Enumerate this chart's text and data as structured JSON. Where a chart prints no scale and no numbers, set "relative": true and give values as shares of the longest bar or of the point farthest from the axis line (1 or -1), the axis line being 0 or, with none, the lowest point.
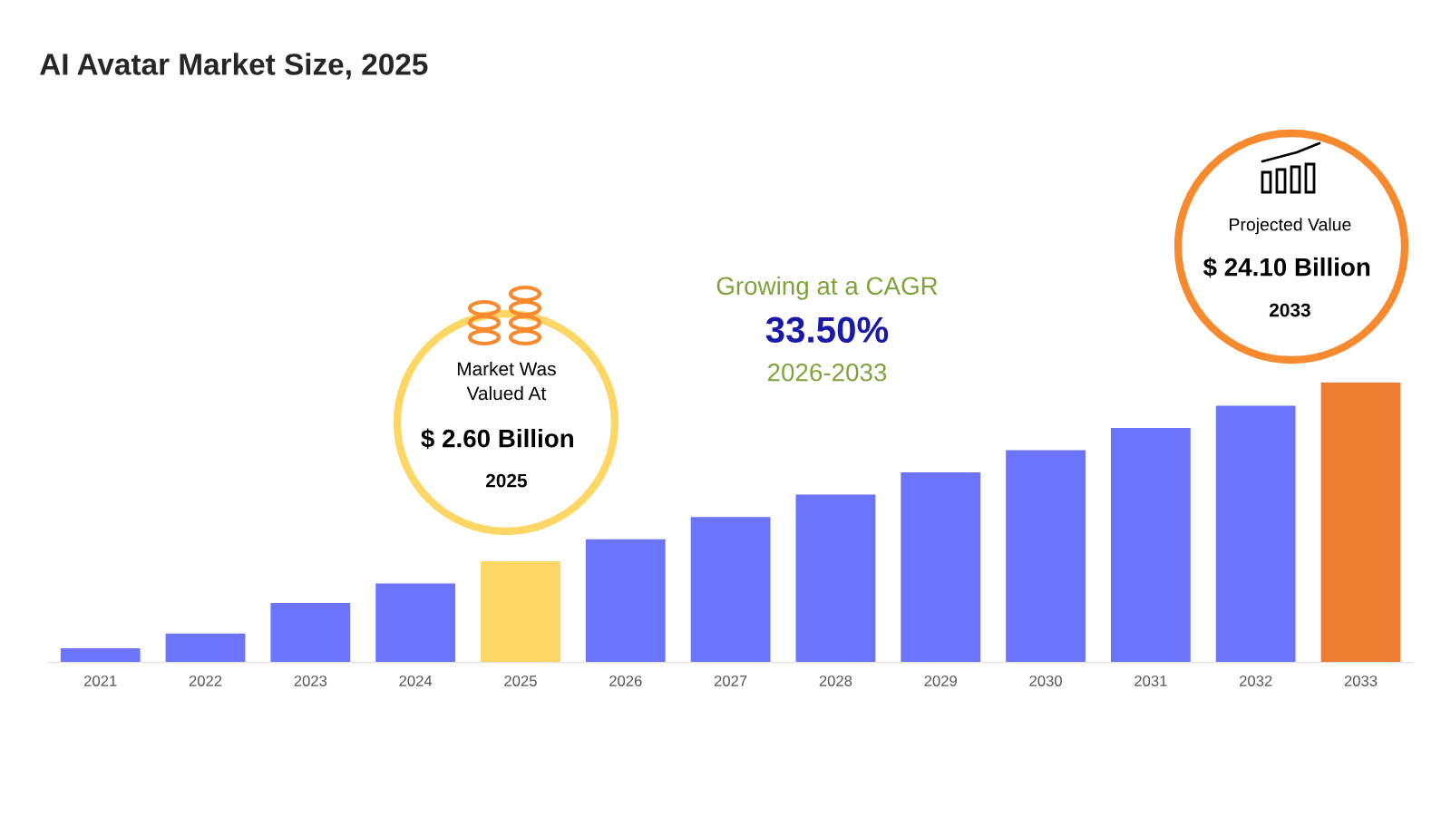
{
  "chart_data": {
    "type": "bar",
    "title": "AI Avatar Market Size, 2025",
    "categories": [
      "2021",
      "2022",
      "2023",
      "2024",
      "2025",
      "2026",
      "2027",
      "2028",
      "2029",
      "2030",
      "2031",
      "2032",
      "2033"
    ],
    "values": [
      0.053,
      0.106,
      0.215,
      0.284,
      0.363,
      0.442,
      0.521,
      0.601,
      0.68,
      0.759,
      0.838,
      0.917,
      1
    ],
    "colors": [
      "#6c74fc",
      "#6c74fc",
      "#6c74fc",
      "#6c74fc",
      "#fdd766",
      "#6c74fc",
      "#6c74fc",
      "#6c74fc",
      "#6c74fc",
      "#6c74fc",
      "#6c74fc",
      "#6c74fc",
      "#ed7d31"
    ],
    "relative": true,
    "grid": false,
    "legend": false,
    "annotations": [
      "Market Was\nValued At",
      "$ 2.60 Billion",
      "2025",
      "Growing at a CAGR",
      "33.50%",
      "2026-2033",
      "Projected Value",
      "$ 24.10 Billion",
      "2033"
    ]
  }
}
